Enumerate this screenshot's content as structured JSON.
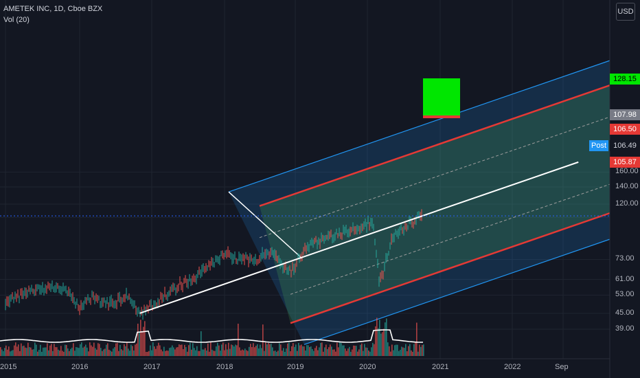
{
  "legend": {
    "title": "AMETEK INC, 1D, Cboe BZX",
    "volume": "Vol (20)"
  },
  "currency_button": "USD",
  "post_label": "Post",
  "colors": {
    "background": "#131722",
    "grid": "#1f2430",
    "channel_blue": "#2962ff",
    "channel_red": "#e53935",
    "median_line": "#ffffff",
    "target_box": "#00e600",
    "candle_up": "#26a69a",
    "candle_down": "#ef5350"
  },
  "chart_data": {
    "type": "line",
    "title": "AMETEK INC, 1D, Cboe BZX",
    "x_ticks": [
      "2015",
      "2016",
      "2017",
      "2018",
      "2019",
      "2020",
      "2021",
      "2022",
      "Sep"
    ],
    "y_ticks": [
      160,
      140,
      120,
      106.49,
      73,
      61,
      53,
      45,
      39
    ],
    "y_tick_labels": [
      "160.00",
      "140.00",
      "120.00",
      "106.49",
      "73.00",
      "61.00",
      "53.00",
      "45.00",
      "39.00"
    ],
    "y_scale": "log",
    "price_tags": [
      {
        "label": "128.15",
        "value": 128.15,
        "color": "#00e600",
        "text_color": "#000000"
      },
      {
        "label": "107.98",
        "value": 107.98,
        "color": "#787b86",
        "text_color": "#ffffff"
      },
      {
        "label": "106.50",
        "value": 106.5,
        "color": "#e53935",
        "text_color": "#ffffff"
      },
      {
        "label": "106.49",
        "value": 106.49,
        "color": "#131722",
        "text_color": "#d1d4dc"
      },
      {
        "label": "105.87",
        "value": 105.87,
        "color": "#e53935",
        "text_color": "#ffffff"
      }
    ],
    "price_series": [
      [
        "2015-01",
        50
      ],
      [
        "2015-04",
        54
      ],
      [
        "2015-08",
        57
      ],
      [
        "2015-11",
        55
      ],
      [
        "2016-01",
        47
      ],
      [
        "2016-03",
        52
      ],
      [
        "2016-06",
        49
      ],
      [
        "2016-09",
        53
      ],
      [
        "2016-11",
        45
      ],
      [
        "2017-02",
        50
      ],
      [
        "2017-05",
        57
      ],
      [
        "2017-09",
        64
      ],
      [
        "2018-01",
        77
      ],
      [
        "2018-03",
        74
      ],
      [
        "2018-06",
        72
      ],
      [
        "2018-09",
        79
      ],
      [
        "2018-12",
        65
      ],
      [
        "2019-03",
        82
      ],
      [
        "2019-07",
        90
      ],
      [
        "2019-10",
        95
      ],
      [
        "2020-01",
        100
      ],
      [
        "2020-02",
        101
      ],
      [
        "2020-03",
        58
      ],
      [
        "2020-05",
        88
      ],
      [
        "2020-08",
        101
      ],
      [
        "2020-10",
        108
      ]
    ],
    "median_line": [
      [
        "2016-11",
        45
      ],
      [
        "2021-06",
        128
      ],
      [
        "2022-12",
        175
      ]
    ],
    "grid": true
  }
}
